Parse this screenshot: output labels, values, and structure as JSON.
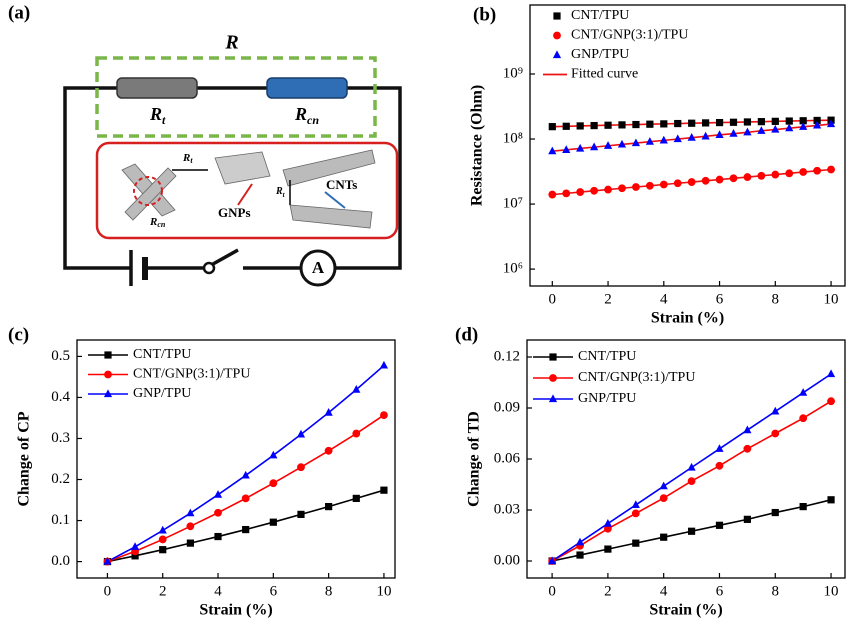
{
  "diagram": {
    "panel_label": "(a)",
    "total": "R",
    "resistor_t": {
      "symbol": "R",
      "subscript": "t"
    },
    "resistor_cn": {
      "symbol": "R",
      "subscript": "cn"
    },
    "inset": {
      "rt_top": {
        "symbol": "R",
        "subscript": "t"
      },
      "gnps": "GNPs",
      "rcn": {
        "symbol": "R",
        "subscript": "cn"
      },
      "rt_side": {
        "symbol": "R",
        "subscript": "t"
      },
      "cnts": "CNTs"
    },
    "ammeter": "A"
  },
  "chart_data": [
    {
      "type": "scatter",
      "panel_label": "(b)",
      "x_label": "Strain (%)",
      "y_label": "Resistance (Ohm)",
      "yscale": "log",
      "xlim": [
        -0.8,
        10.5
      ],
      "ylim": [
        550000,
        11500000000
      ],
      "xticks": [
        0,
        2,
        4,
        6,
        8,
        10
      ],
      "yticks": [
        {
          "value": 1000000,
          "label": "10⁶"
        },
        {
          "value": 10000000,
          "label": "10⁷"
        },
        {
          "value": 100000000,
          "label": "10⁸"
        },
        {
          "value": 1000000000,
          "label": "10⁹"
        }
      ],
      "legend": "upper left",
      "lines": false,
      "fit_label": "Fitted curve",
      "fit_color": "#ee1111",
      "x": [
        0,
        0.5,
        1,
        1.5,
        2,
        2.5,
        3,
        3.5,
        4,
        4.5,
        5,
        5.5,
        6,
        6.5,
        7,
        7.5,
        8,
        8.5,
        9,
        9.5,
        10
      ],
      "series": [
        {
          "name": "CNT/TPU",
          "color": "#000000",
          "marker": "square",
          "values": [
            155000000,
            157000000,
            159000000,
            161000000,
            163000000,
            165000000,
            167000000,
            169000000,
            171000000,
            173000000,
            175000000,
            177000000,
            179000000,
            181000000,
            183000000,
            185000000,
            187000000,
            189000000,
            191000000,
            193000000,
            195000000
          ]
        },
        {
          "name": "CNT/GNP(3:1)/TPU",
          "color": "#ff0000",
          "marker": "circle",
          "values": [
            14000000,
            14600000,
            15300000,
            16000000,
            16700000,
            17500000,
            18300000,
            19100000,
            20000000,
            20900000,
            21800000,
            22800000,
            23800000,
            24900000,
            26000000,
            27200000,
            28400000,
            29700000,
            31100000,
            32500000,
            34000000
          ]
        },
        {
          "name": "GNP/TPU",
          "color": "#0000ff",
          "marker": "triangle",
          "values": [
            65000000,
            68200000,
            71600000,
            75100000,
            78800000,
            82600000,
            86700000,
            91000000,
            95400000,
            100000000,
            105000000,
            110000000,
            116000000,
            121000000,
            127000000,
            134000000,
            140000000,
            147000000,
            154000000,
            162000000,
            170000000
          ]
        }
      ]
    },
    {
      "type": "line",
      "panel_label": "(c)",
      "x_label": "Strain (%)",
      "y_label": "Change of CP",
      "xlim": [
        -1.1,
        10.4
      ],
      "ylim": [
        -0.04,
        0.54
      ],
      "xticks": [
        0,
        2,
        4,
        6,
        8,
        10
      ],
      "yticks": [
        {
          "value": 0,
          "label": "0.0"
        },
        0.1,
        0.2,
        0.3,
        0.4,
        0.5
      ],
      "legend": "upper left",
      "lines": true,
      "x": [
        0,
        1,
        2,
        3,
        4,
        5,
        6,
        7,
        8,
        9,
        10
      ],
      "series": [
        {
          "name": "CNT/TPU",
          "color": "#000000",
          "marker": "square",
          "values": [
            0,
            0.014,
            0.029,
            0.045,
            0.061,
            0.078,
            0.096,
            0.115,
            0.134,
            0.154,
            0.174
          ]
        },
        {
          "name": "CNT/GNP(3:1)/TPU",
          "color": "#ff0000",
          "marker": "circle",
          "values": [
            0,
            0.025,
            0.054,
            0.086,
            0.119,
            0.154,
            0.191,
            0.23,
            0.27,
            0.312,
            0.357
          ]
        },
        {
          "name": "GNP/TPU",
          "color": "#0000ff",
          "marker": "triangle",
          "values": [
            0,
            0.036,
            0.076,
            0.118,
            0.163,
            0.21,
            0.259,
            0.31,
            0.363,
            0.419,
            0.478
          ]
        }
      ]
    },
    {
      "type": "line",
      "panel_label": "(d)",
      "x_label": "Strain (%)",
      "y_label": "Change of TD",
      "xlim": [
        -0.9,
        10.5
      ],
      "ylim": [
        -0.01,
        0.13
      ],
      "xticks": [
        0,
        2,
        4,
        6,
        8,
        10
      ],
      "yticks": [
        {
          "value": 0,
          "label": "0.00"
        },
        0.03,
        0.06,
        0.09,
        0.12
      ],
      "legend": "upper left",
      "lines": true,
      "x": [
        0,
        1,
        2,
        3,
        4,
        5,
        6,
        7,
        8,
        9,
        10
      ],
      "series": [
        {
          "name": "CNT/TPU",
          "color": "#000000",
          "marker": "square",
          "values": [
            0,
            0.0035,
            0.007,
            0.0105,
            0.014,
            0.0175,
            0.021,
            0.0245,
            0.0285,
            0.032,
            0.036
          ]
        },
        {
          "name": "CNT/GNP(3:1)/TPU",
          "color": "#ff0000",
          "marker": "circle",
          "values": [
            0,
            0.009,
            0.019,
            0.028,
            0.037,
            0.047,
            0.056,
            0.066,
            0.075,
            0.084,
            0.094
          ]
        },
        {
          "name": "GNP/TPU",
          "color": "#0000ff",
          "marker": "triangle",
          "values": [
            0,
            0.011,
            0.022,
            0.033,
            0.044,
            0.055,
            0.066,
            0.077,
            0.088,
            0.099,
            0.11
          ]
        }
      ]
    }
  ]
}
